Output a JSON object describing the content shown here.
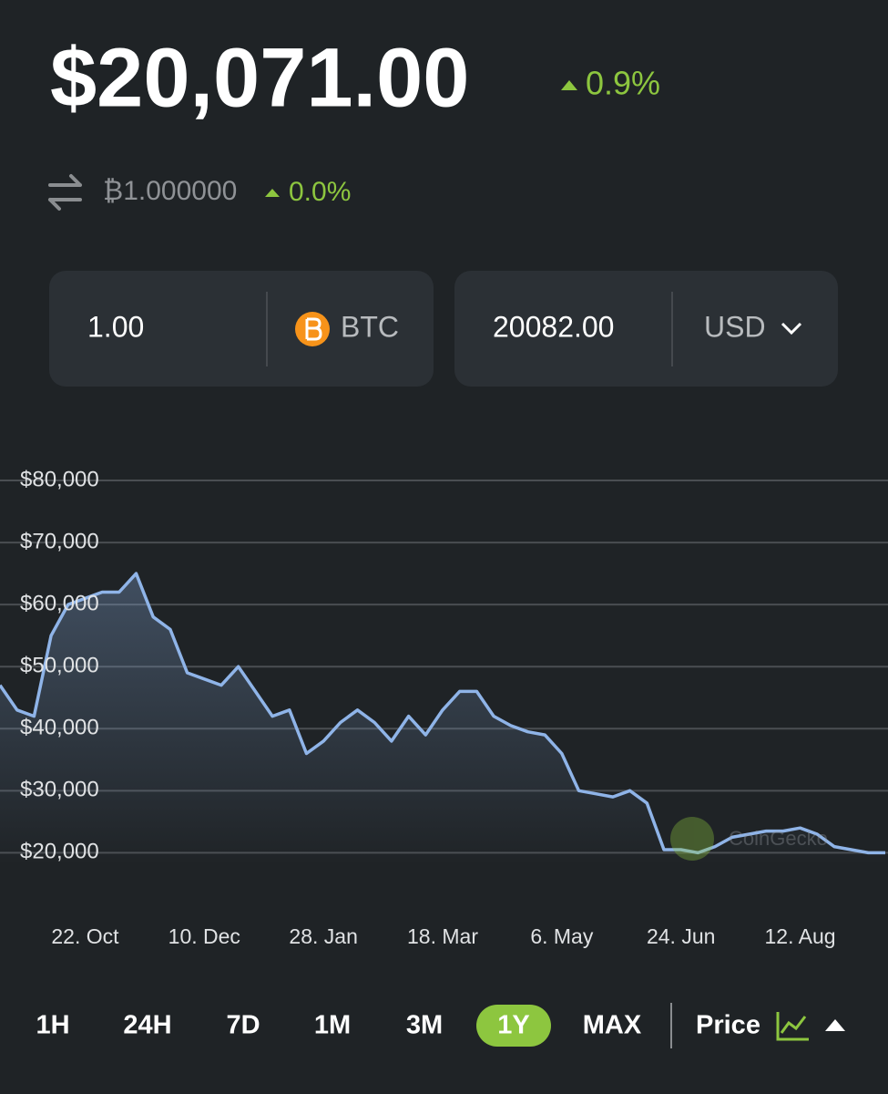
{
  "header": {
    "price": "$20,071.00",
    "change": "0.9%",
    "btc_price": "₿1.000000",
    "btc_change": "0.0%"
  },
  "converter": {
    "from_amount": "1.00",
    "from_currency": "BTC",
    "to_amount": "20082.00",
    "to_currency": "USD"
  },
  "chart_data": {
    "type": "line",
    "watermark": "CoinGecko",
    "color": "#8fb4e8",
    "grid": true,
    "categories": [
      null,
      null,
      null,
      null,
      null,
      "22. Oct",
      null,
      null,
      null,
      null,
      null,
      null,
      "10. Dec",
      null,
      null,
      null,
      null,
      null,
      null,
      "28. Jan",
      null,
      null,
      null,
      null,
      null,
      null,
      "18. Mar",
      null,
      null,
      null,
      null,
      null,
      null,
      "6. May",
      null,
      null,
      null,
      null,
      null,
      null,
      "24. Jun",
      null,
      null,
      null,
      null,
      null,
      null,
      "12. Aug",
      null,
      null,
      null,
      null,
      null
    ],
    "values": [
      47000,
      43000,
      42000,
      55000,
      60000,
      61000,
      62000,
      62000,
      65000,
      58000,
      56000,
      49000,
      48000,
      47000,
      50000,
      46000,
      42000,
      43000,
      36000,
      38000,
      41000,
      43000,
      41000,
      38000,
      42000,
      39000,
      43000,
      46000,
      46000,
      42000,
      40500,
      39500,
      39000,
      36000,
      30000,
      29500,
      29000,
      30000,
      28000,
      20500,
      20500,
      20000,
      21000,
      22500,
      23000,
      23500,
      23500,
      24000,
      23000,
      21000,
      20500,
      20000,
      20000
    ],
    "ylim": [
      18000,
      80000
    ],
    "yticks": [
      {
        "value": 20000,
        "label": "$20,000"
      },
      {
        "value": 30000,
        "label": "$30,000"
      },
      {
        "value": 40000,
        "label": "$40,000"
      },
      {
        "value": 50000,
        "label": "$50,000"
      },
      {
        "value": 60000,
        "label": "$60,000"
      },
      {
        "value": 70000,
        "label": "$70,000"
      },
      {
        "value": 80000,
        "label": "$80,000"
      }
    ]
  },
  "range_buttons": [
    {
      "label": "1H",
      "selected": false
    },
    {
      "label": "24H",
      "selected": false
    },
    {
      "label": "7D",
      "selected": false
    },
    {
      "label": "1M",
      "selected": false
    },
    {
      "label": "3M",
      "selected": false
    },
    {
      "label": "1Y",
      "selected": true
    },
    {
      "label": "MAX",
      "selected": false
    }
  ],
  "metric": "Price"
}
